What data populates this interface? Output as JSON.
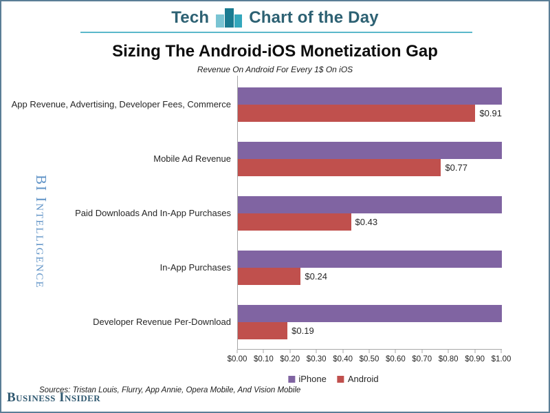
{
  "frame": {
    "border_color": "#5a7e96"
  },
  "header": {
    "brand_left": "Tech",
    "brand_right": "Chart of the Day",
    "text_color": "#2d6173",
    "underline_color": "#5ab8ca",
    "icon_bars": [
      {
        "width": 12,
        "height": 19,
        "color": "#7ac4d3"
      },
      {
        "width": 13,
        "height": 28,
        "color": "#1a7b91"
      },
      {
        "width": 11,
        "height": 19,
        "color": "#33a7bc"
      }
    ]
  },
  "chart_data": {
    "type": "bar",
    "orientation": "horizontal",
    "title": "Sizing The Android-iOS Monetization Gap",
    "subtitle": "Revenue On Android For Every 1$ On iOS",
    "categories": [
      "App Revenue, Advertising, Developer Fees, Commerce",
      "Mobile Ad Revenue",
      "Paid Downloads And In-App Purchases",
      "In-App Purchases",
      "Developer Revenue Per-Download"
    ],
    "series": [
      {
        "name": "iPhone",
        "color": "#8064A2",
        "values": [
          1.0,
          1.0,
          1.0,
          1.0,
          1.0
        ],
        "value_labels": [
          "",
          "",
          "",
          "",
          ""
        ]
      },
      {
        "name": "Android",
        "color": "#C0504D",
        "values": [
          0.91,
          0.77,
          0.43,
          0.24,
          0.19
        ],
        "value_labels": [
          "$0.91",
          "$0.77",
          "$0.43",
          "$0.24",
          "$0.19"
        ]
      }
    ],
    "xlim": [
      0,
      1
    ],
    "x_ticks": [
      "$0.00",
      "$0.10",
      "$0.20",
      "$0.30",
      "$0.40",
      "$0.50",
      "$0.60",
      "$0.70",
      "$0.80",
      "$0.90",
      "$1.00"
    ],
    "legend_position": "bottom",
    "grid": false,
    "axis_color": "#a6a6a6"
  },
  "watermark": {
    "text": "BI Intelligence",
    "color": "#5e92c6"
  },
  "footer": {
    "sources": "Sources: Tristan Louis, Flurry, App Annie, Opera Mobile, And Vision Mobile",
    "logo": "Business Insider",
    "logo_color": "#2f5870"
  }
}
